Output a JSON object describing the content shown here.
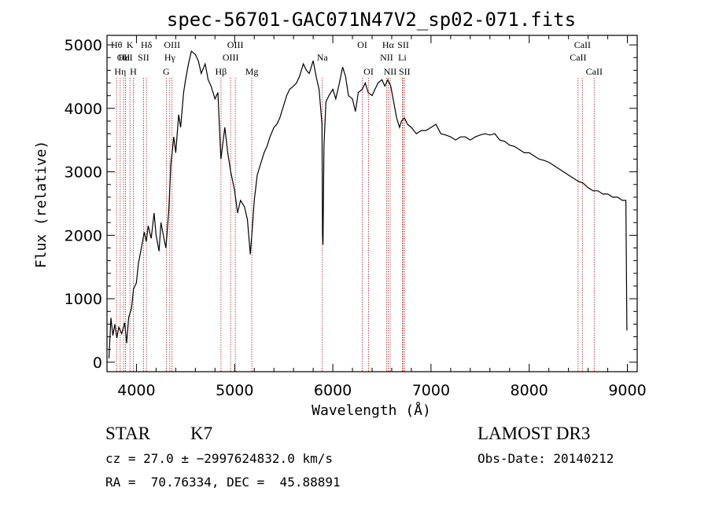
{
  "chart_data": {
    "type": "line",
    "title": "spec-56701-GAC071N47V2_sp02-071.fits",
    "xlabel": "Wavelength (Å)",
    "ylabel": "Flux (relative)",
    "xlim": [
      3700,
      9100
    ],
    "ylim": [
      -150,
      5150
    ],
    "x_ticks": [
      4000,
      5000,
      6000,
      7000,
      8000,
      9000
    ],
    "y_ticks": [
      0,
      1000,
      2000,
      3000,
      4000,
      5000
    ],
    "grid": false,
    "series": [
      {
        "color": "#000000",
        "x": [
          3720,
          3740,
          3760,
          3780,
          3800,
          3820,
          3850,
          3880,
          3900,
          3920,
          3950,
          3970,
          4000,
          4020,
          4050,
          4080,
          4100,
          4120,
          4150,
          4180,
          4200,
          4230,
          4250,
          4280,
          4300,
          4330,
          4350,
          4380,
          4400,
          4430,
          4450,
          4480,
          4500,
          4530,
          4560,
          4600,
          4630,
          4660,
          4700,
          4730,
          4760,
          4800,
          4830,
          4860,
          4880,
          4900,
          4930,
          4960,
          5000,
          5030,
          5060,
          5100,
          5130,
          5160,
          5180,
          5200,
          5230,
          5260,
          5300,
          5330,
          5360,
          5400,
          5430,
          5460,
          5500,
          5530,
          5560,
          5600,
          5630,
          5660,
          5700,
          5730,
          5760,
          5800,
          5830,
          5860,
          5890,
          5895,
          5900,
          5910,
          5930,
          5960,
          6000,
          6030,
          6060,
          6100,
          6130,
          6160,
          6200,
          6230,
          6260,
          6300,
          6330,
          6360,
          6400,
          6430,
          6460,
          6500,
          6530,
          6560,
          6590,
          6620,
          6650,
          6680,
          6700,
          6730,
          6760,
          6800,
          6850,
          6900,
          6950,
          7000,
          7050,
          7100,
          7150,
          7200,
          7250,
          7300,
          7350,
          7400,
          7450,
          7500,
          7550,
          7600,
          7650,
          7700,
          7750,
          7800,
          7850,
          7900,
          7950,
          8000,
          8050,
          8100,
          8150,
          8200,
          8250,
          8300,
          8350,
          8400,
          8450,
          8500,
          8550,
          8600,
          8650,
          8700,
          8750,
          8800,
          8850,
          8900,
          8950,
          8985,
          8995
        ],
        "y": [
          60,
          700,
          420,
          600,
          380,
          550,
          450,
          620,
          300,
          700,
          850,
          1150,
          1250,
          1550,
          1800,
          2050,
          1900,
          2150,
          1950,
          2350,
          2000,
          1750,
          2200,
          1950,
          1800,
          2400,
          3100,
          3550,
          3300,
          3900,
          3700,
          4250,
          4450,
          4700,
          4900,
          4850,
          4750,
          4550,
          4700,
          4450,
          4350,
          4150,
          4250,
          3200,
          3450,
          3700,
          3300,
          3000,
          2700,
          2350,
          2550,
          2450,
          2250,
          1700,
          2100,
          2550,
          2950,
          3100,
          3300,
          3400,
          3550,
          3700,
          3750,
          3850,
          4050,
          4200,
          4300,
          4350,
          4400,
          4500,
          4700,
          4600,
          4550,
          4750,
          4500,
          4300,
          3750,
          2000,
          1850,
          3400,
          4100,
          4200,
          4300,
          4150,
          4350,
          4650,
          4500,
          4200,
          4150,
          3950,
          4250,
          4300,
          4400,
          4250,
          4200,
          4300,
          4400,
          4450,
          4350,
          4450,
          4350,
          4100,
          3850,
          3700,
          3800,
          3850,
          3750,
          3700,
          3600,
          3650,
          3650,
          3700,
          3750,
          3600,
          3580,
          3550,
          3500,
          3550,
          3550,
          3500,
          3550,
          3580,
          3600,
          3580,
          3600,
          3500,
          3480,
          3420,
          3400,
          3350,
          3300,
          3300,
          3250,
          3200,
          3180,
          3150,
          3100,
          3050,
          3000,
          2950,
          2900,
          2850,
          2820,
          2750,
          2700,
          2700,
          2650,
          2650,
          2600,
          2600,
          2550,
          2550,
          500
        ]
      }
    ],
    "line_markers": [
      {
        "wave": 3798,
        "label": "Hθ",
        "row": 1
      },
      {
        "wave": 3835,
        "label": "Hη",
        "row": 3
      },
      {
        "wave": 3869,
        "label": "OII",
        "row": 2
      },
      {
        "wave": 3889,
        "label": "HeI",
        "row": 2
      },
      {
        "wave": 3934,
        "label": "K",
        "row": 1
      },
      {
        "wave": 3968,
        "label": "H",
        "row": 3
      },
      {
        "wave": 4072,
        "label": "SII",
        "row": 2
      },
      {
        "wave": 4102,
        "label": "Hδ",
        "row": 1
      },
      {
        "wave": 4304,
        "label": "G",
        "row": 3
      },
      {
        "wave": 4340,
        "label": "Hγ",
        "row": 2
      },
      {
        "wave": 4363,
        "label": "OIII",
        "row": 1
      },
      {
        "wave": 4861,
        "label": "Hβ",
        "row": 3
      },
      {
        "wave": 4959,
        "label": "OIII",
        "row": 2
      },
      {
        "wave": 5007,
        "label": "OIII",
        "row": 1
      },
      {
        "wave": 5175,
        "label": "Mg",
        "row": 3
      },
      {
        "wave": 5893,
        "label": "Na",
        "row": 2
      },
      {
        "wave": 6300,
        "label": "OI",
        "row": 1
      },
      {
        "wave": 6364,
        "label": "OI",
        "row": 3
      },
      {
        "wave": 6548,
        "label": "NII",
        "row": 2
      },
      {
        "wave": 6563,
        "label": "Hα",
        "row": 1
      },
      {
        "wave": 6584,
        "label": "NII",
        "row": 3
      },
      {
        "wave": 6708,
        "label": "Li",
        "row": 2
      },
      {
        "wave": 6717,
        "label": "SII",
        "row": 1
      },
      {
        "wave": 6731,
        "label": "SII",
        "row": 3
      },
      {
        "wave": 8498,
        "label": "CaII",
        "row": 2
      },
      {
        "wave": 8542,
        "label": "CaII",
        "row": 1
      },
      {
        "wave": 8662,
        "label": "CaII",
        "row": 3
      }
    ]
  },
  "info": {
    "class_label": "STAR",
    "subclass": "K7",
    "survey": "LAMOST DR3",
    "cz_line": "cz = 27.0 ± −2997624832.0 km/s",
    "obs_date_line": "Obs-Date: 20140212",
    "radec_line": "RA =  70.76334, DEC =  45.88891"
  }
}
